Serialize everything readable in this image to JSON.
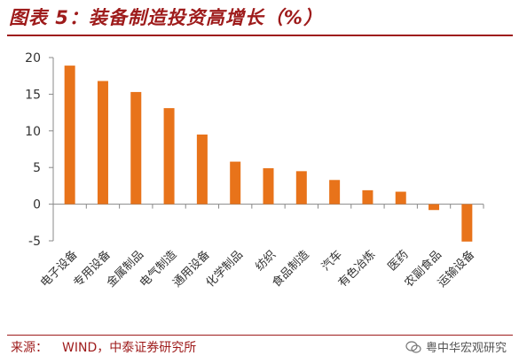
{
  "header": {
    "title": "图表 5：装备制造投资高增长（%）"
  },
  "source": {
    "label": "来源：",
    "value": "WIND，中泰证券研究所"
  },
  "watermark": {
    "text": "粤中华宏观研究"
  },
  "colors": {
    "bar": "#e8731a",
    "accent": "#9e1b1b",
    "axis": "#888888"
  },
  "chart_data": {
    "type": "bar",
    "categories": [
      "电子设备",
      "专用设备",
      "金属制品",
      "电气制造",
      "通用设备",
      "化学制品",
      "纺织",
      "食品制造",
      "汽车",
      "有色冶炼",
      "医药",
      "农副食品",
      "运输设备"
    ],
    "values": [
      18.9,
      16.8,
      15.3,
      13.1,
      9.5,
      5.8,
      4.9,
      4.5,
      3.3,
      1.9,
      1.7,
      -0.8,
      -5.1
    ],
    "ylim": [
      -5,
      20
    ],
    "yticks": [
      "-5",
      "0",
      "5",
      "10",
      "15",
      "20"
    ],
    "grid": false
  }
}
